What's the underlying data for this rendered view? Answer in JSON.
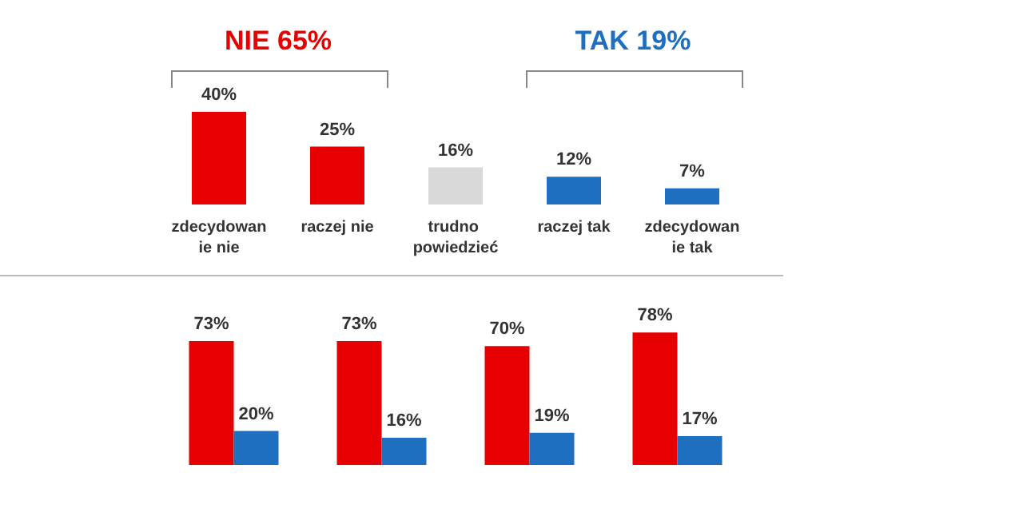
{
  "chart_data": [
    {
      "type": "bar",
      "categories": [
        "zdecydowanie nie",
        "raczej nie",
        "trudno powiedzieć",
        "raczej tak",
        "zdecydowanie tak"
      ],
      "values": [
        40,
        25,
        16,
        12,
        7
      ],
      "value_labels": [
        "40%",
        "25%",
        "16%",
        "12%",
        "7%"
      ],
      "colors": [
        "#e60000",
        "#e60000",
        "#d9d9d9",
        "#1f6fc0",
        "#1f6fc0"
      ],
      "annotations": [
        "NIE 65%",
        "TAK 19%"
      ]
    },
    {
      "type": "bar",
      "categories": [
        null,
        null,
        null,
        null
      ],
      "series": [
        {
          "color": "#e60000",
          "values": [
            73,
            73,
            70,
            78
          ],
          "value_labels": [
            "73%",
            "73%",
            "70%",
            "78%"
          ]
        },
        {
          "color": "#1f6fc0",
          "values": [
            20,
            16,
            19,
            17
          ],
          "value_labels": [
            "20%",
            "16%",
            "19%",
            "17%"
          ]
        }
      ]
    }
  ]
}
